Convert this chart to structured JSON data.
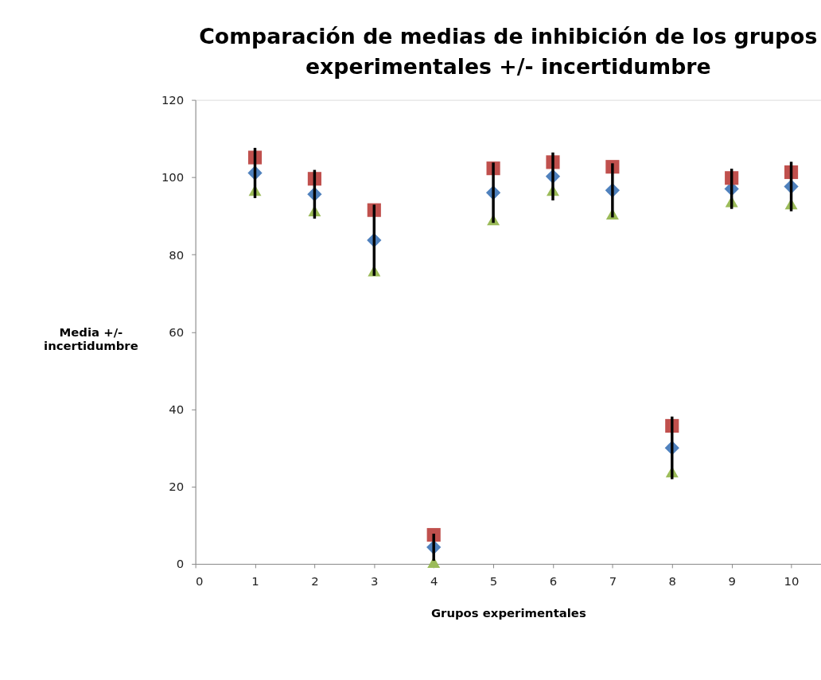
{
  "chart_data": {
    "type": "scatter",
    "title": "Comparación de medias de inhibición de los grupos experimentales +/- incertidumbre",
    "xlabel": "Grupos experimentales",
    "ylabel": "Media +/- incertidumbre",
    "x": [
      1,
      2,
      3,
      4,
      5,
      6,
      7,
      8,
      9,
      10
    ],
    "series": [
      {
        "color": "#4f81bd",
        "marker": "diamond",
        "values": [
          101.1,
          95.6,
          83.7,
          4.3,
          96.0,
          100.2,
          96.6,
          30.0,
          97.0,
          97.6
        ],
        "errors": [
          6.5,
          6.3,
          9.2,
          3.5,
          7.8,
          6.2,
          7.0,
          8.1,
          5.2,
          6.4
        ]
      },
      {
        "color": "#c0504d",
        "marker": "square",
        "values": [
          105.1,
          99.6,
          91.5,
          7.5,
          102.3,
          103.9,
          102.7,
          35.7,
          99.8,
          101.3
        ]
      },
      {
        "color": "#9bbb59",
        "marker": "triangle",
        "values": [
          96.6,
          91.3,
          75.8,
          0.4,
          89.0,
          96.6,
          90.5,
          23.8,
          93.7,
          93.1
        ]
      }
    ],
    "xlim": [
      0,
      10.5
    ],
    "xticks": [
      0,
      1,
      2,
      3,
      4,
      5,
      6,
      7,
      8,
      9,
      10
    ],
    "ylim": [
      0,
      120
    ],
    "yticks": [
      0,
      20,
      40,
      60,
      80,
      100,
      120
    ],
    "grid": false,
    "legend": false
  }
}
